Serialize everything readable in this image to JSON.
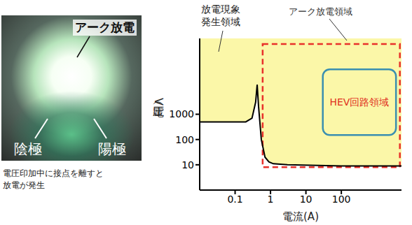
{
  "photo": {
    "title": "アーク放電",
    "cathode": "陰極",
    "anode": "陽極",
    "caption": "電圧印加中に接点を離すと放電が発生"
  },
  "chart_data": {
    "type": "line",
    "log": true,
    "grid": false,
    "x_label": "電流(A)",
    "y_label": "電圧（V）",
    "x": [
      0.01,
      0.2,
      0.3,
      0.38,
      0.42,
      0.46,
      0.55,
      0.7,
      0.9,
      1.2,
      3,
      100,
      5000
    ],
    "values": [
      500,
      500,
      700,
      3000,
      15000,
      2000,
      100,
      20,
      13,
      11,
      10,
      9,
      9
    ],
    "color": "#000000",
    "xlim": [
      0.01,
      5000
    ],
    "ylim": [
      1,
      1000000
    ],
    "xticks": [
      0.1,
      1,
      10,
      100
    ],
    "yticks": [
      10,
      100,
      1000
    ],
    "fill_above": {
      "label": "放電現象発生領域",
      "color": "#fbf7a8"
    },
    "arc_region": {
      "label": "アーク放電領域",
      "x": [
        0.6,
        4500
      ],
      "y": [
        8,
        600000
      ],
      "color": "#e8302a",
      "line_style": "dashed"
    },
    "hev_region": {
      "label": "HEV回路領域",
      "x": [
        30,
        3500
      ],
      "y": [
        150,
        60000
      ],
      "color": "#3a8fb0"
    }
  }
}
